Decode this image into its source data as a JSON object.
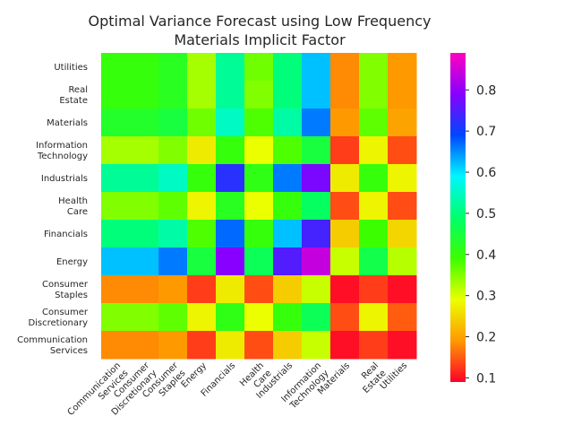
{
  "chart_data": {
    "type": "heatmap",
    "title_line1": "Optimal Variance Forecast using Low Frequency",
    "title_line2": "Materials Implicit Factor",
    "rows": [
      "Utilities",
      "Real Estate",
      "Materials",
      "Information Technology",
      "Industrials",
      "Health Care",
      "Financials",
      "Energy",
      "Consumer Staples",
      "Consumer Discretionary",
      "Communication Services"
    ],
    "columns": [
      "Communication Services",
      "Consumer Discretionary",
      "Consumer Staples",
      "Energy",
      "Financials",
      "Health Care",
      "Industrials",
      "Information Technology",
      "Materials",
      "Real Estate",
      "Utilities"
    ],
    "values": [
      [
        0.4,
        0.4,
        0.42,
        0.33,
        0.52,
        0.36,
        0.5,
        0.62,
        0.18,
        0.35,
        0.19
      ],
      [
        0.4,
        0.4,
        0.42,
        0.33,
        0.52,
        0.35,
        0.5,
        0.62,
        0.18,
        0.35,
        0.19
      ],
      [
        0.43,
        0.43,
        0.45,
        0.36,
        0.55,
        0.38,
        0.53,
        0.66,
        0.19,
        0.37,
        0.2
      ],
      [
        0.33,
        0.33,
        0.35,
        0.27,
        0.4,
        0.29,
        0.38,
        0.45,
        0.13,
        0.28,
        0.14
      ],
      [
        0.52,
        0.52,
        0.55,
        0.4,
        0.72,
        0.41,
        0.66,
        0.78,
        0.27,
        0.4,
        0.28
      ],
      [
        0.35,
        0.35,
        0.37,
        0.28,
        0.42,
        0.29,
        0.4,
        0.48,
        0.14,
        0.28,
        0.14
      ],
      [
        0.5,
        0.5,
        0.53,
        0.38,
        0.67,
        0.4,
        0.62,
        0.74,
        0.24,
        0.39,
        0.25
      ],
      [
        0.62,
        0.62,
        0.66,
        0.45,
        0.79,
        0.47,
        0.75,
        0.84,
        0.31,
        0.46,
        0.32
      ],
      [
        0.18,
        0.18,
        0.19,
        0.13,
        0.27,
        0.14,
        0.24,
        0.31,
        0.1,
        0.13,
        0.1
      ],
      [
        0.35,
        0.35,
        0.37,
        0.28,
        0.41,
        0.29,
        0.4,
        0.47,
        0.14,
        0.28,
        0.15
      ],
      [
        0.18,
        0.18,
        0.19,
        0.13,
        0.27,
        0.14,
        0.24,
        0.31,
        0.1,
        0.13,
        0.1
      ]
    ],
    "vmin": 0.09,
    "vmax": 0.89,
    "colormap": "gist_rainbow",
    "colorbar_ticks": [
      0.1,
      0.2,
      0.3,
      0.4,
      0.5,
      0.6,
      0.7,
      0.8
    ],
    "grid": false
  }
}
